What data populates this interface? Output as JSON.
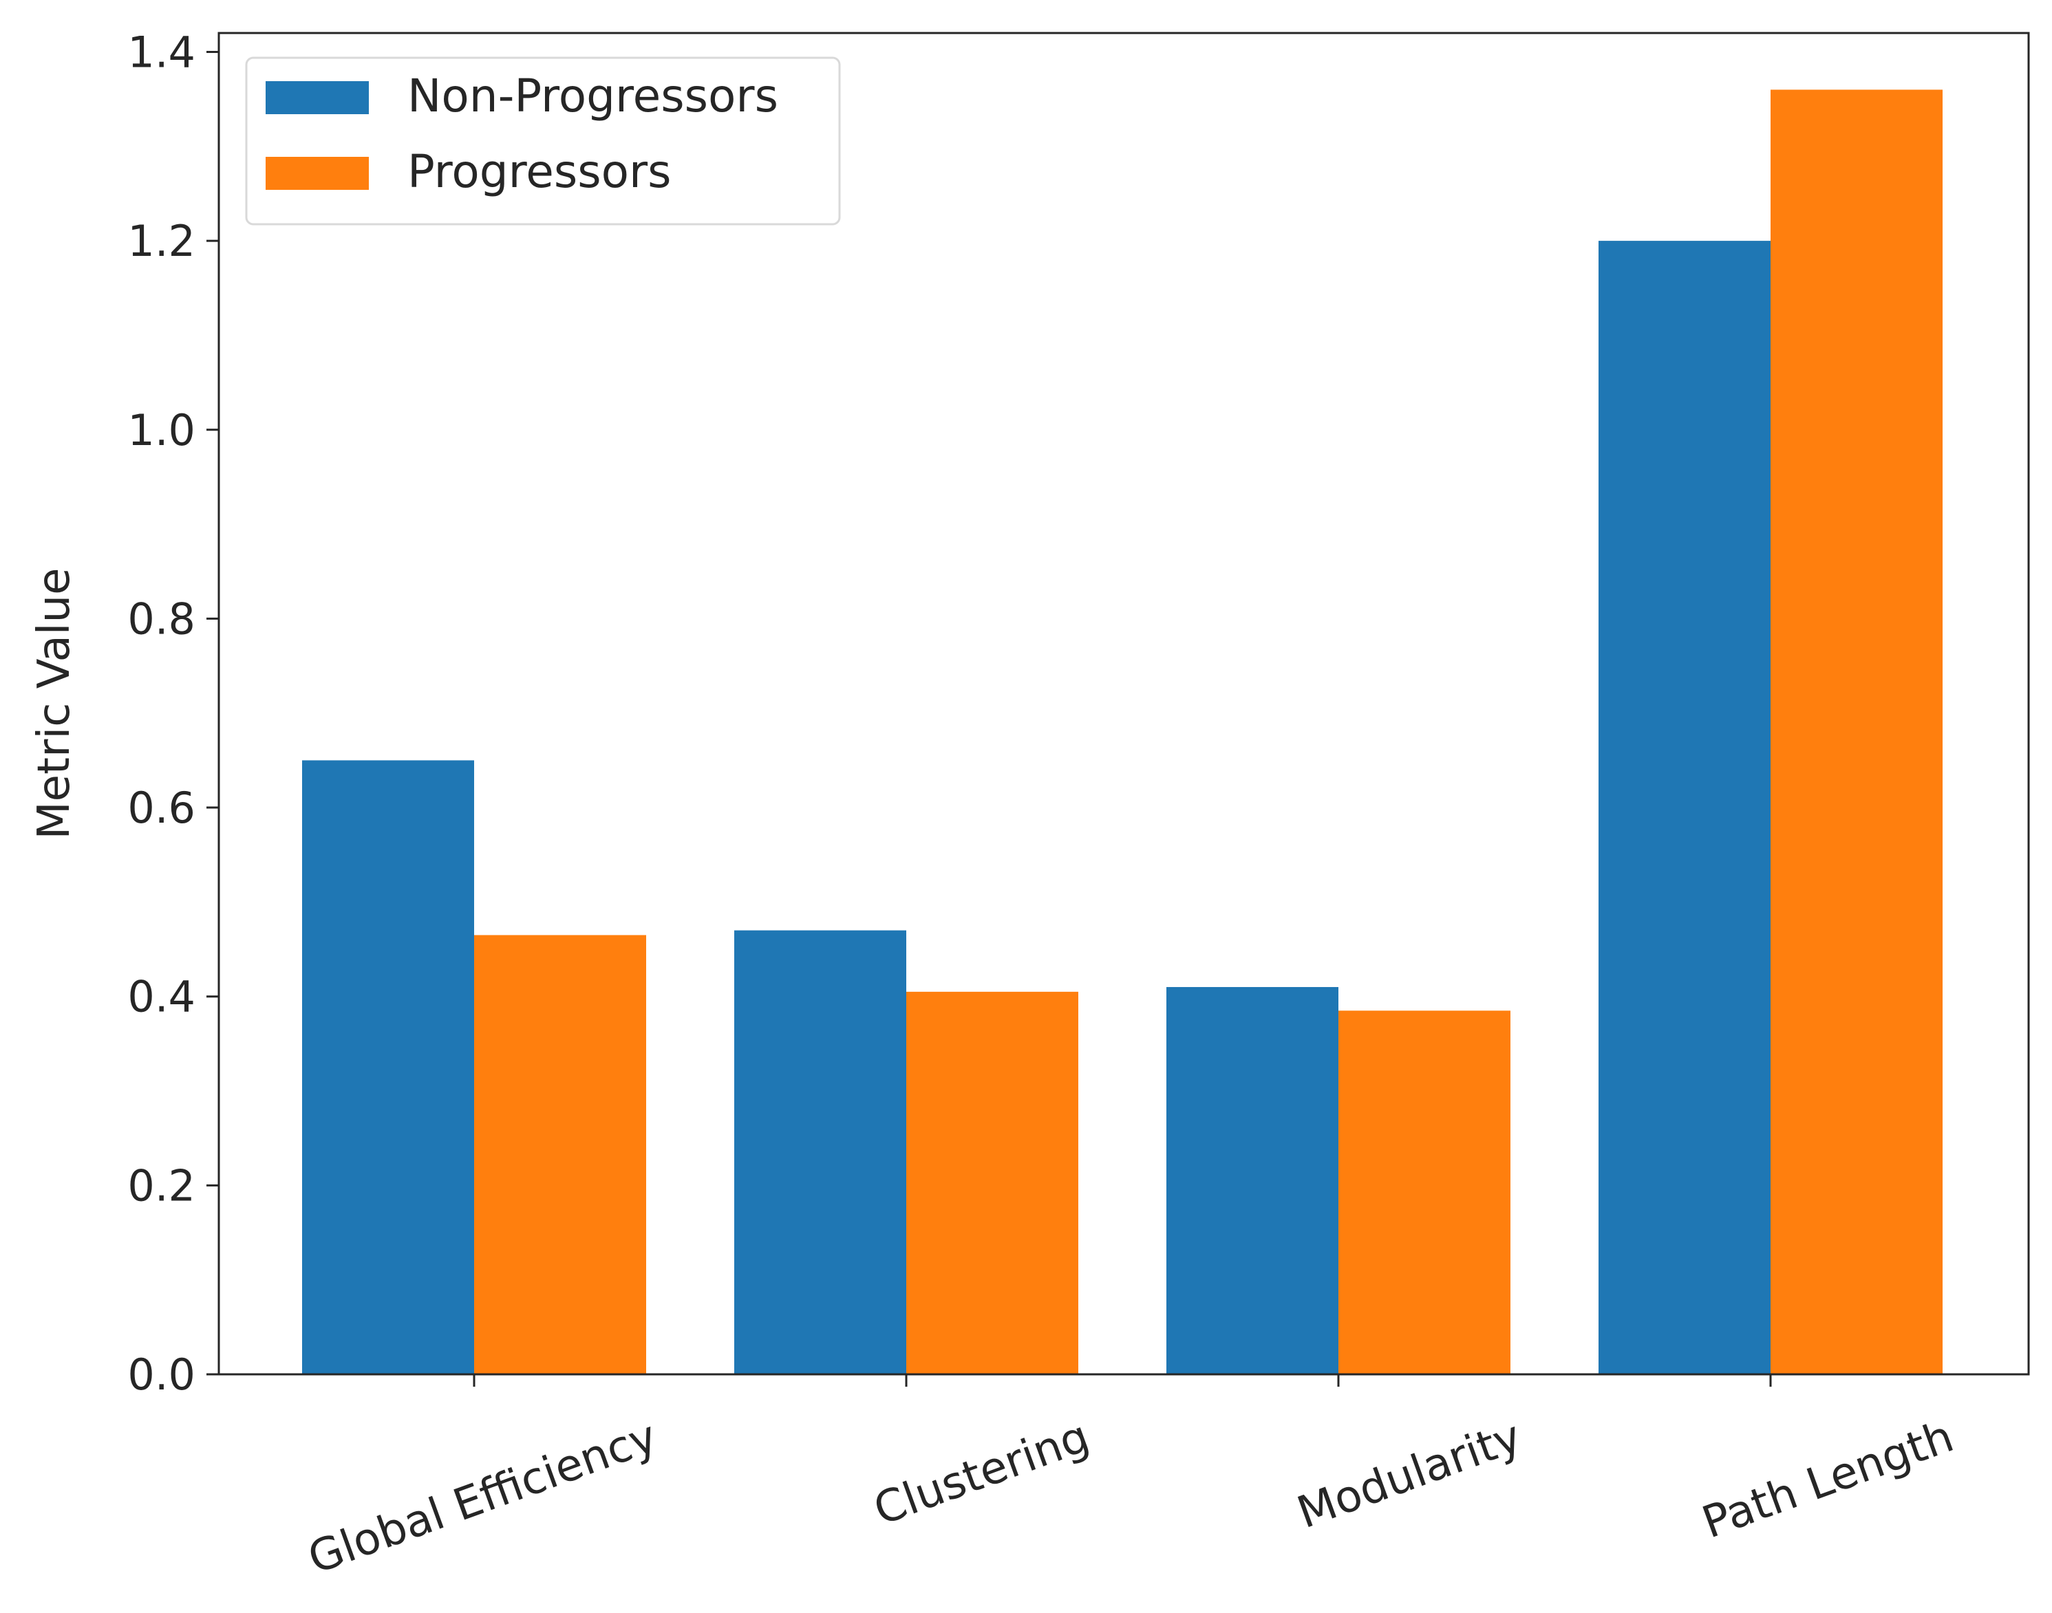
{
  "chart_data": {
    "type": "bar",
    "title": "",
    "xlabel": "",
    "ylabel": "Metric Value",
    "categories": [
      "Global Efficiency",
      "Clustering",
      "Modularity",
      "Path Length"
    ],
    "series": [
      {
        "name": "Non-Progressors",
        "values": [
          0.65,
          0.47,
          0.41,
          1.2
        ],
        "color": "#1f77b4"
      },
      {
        "name": "Progressors",
        "values": [
          0.465,
          0.405,
          0.385,
          1.36
        ],
        "color": "#ff7f0e"
      }
    ],
    "ylim": [
      0,
      1.42
    ],
    "yticks": [
      "0.0",
      "0.2",
      "0.4",
      "0.6",
      "0.8",
      "1.0",
      "1.2",
      "1.4"
    ],
    "ytick_values": [
      0,
      0.2,
      0.4,
      0.6,
      0.8,
      1.0,
      1.2,
      1.4
    ],
    "grid": false,
    "legend_position": "top-left",
    "xtick_rotation": "rotated"
  }
}
